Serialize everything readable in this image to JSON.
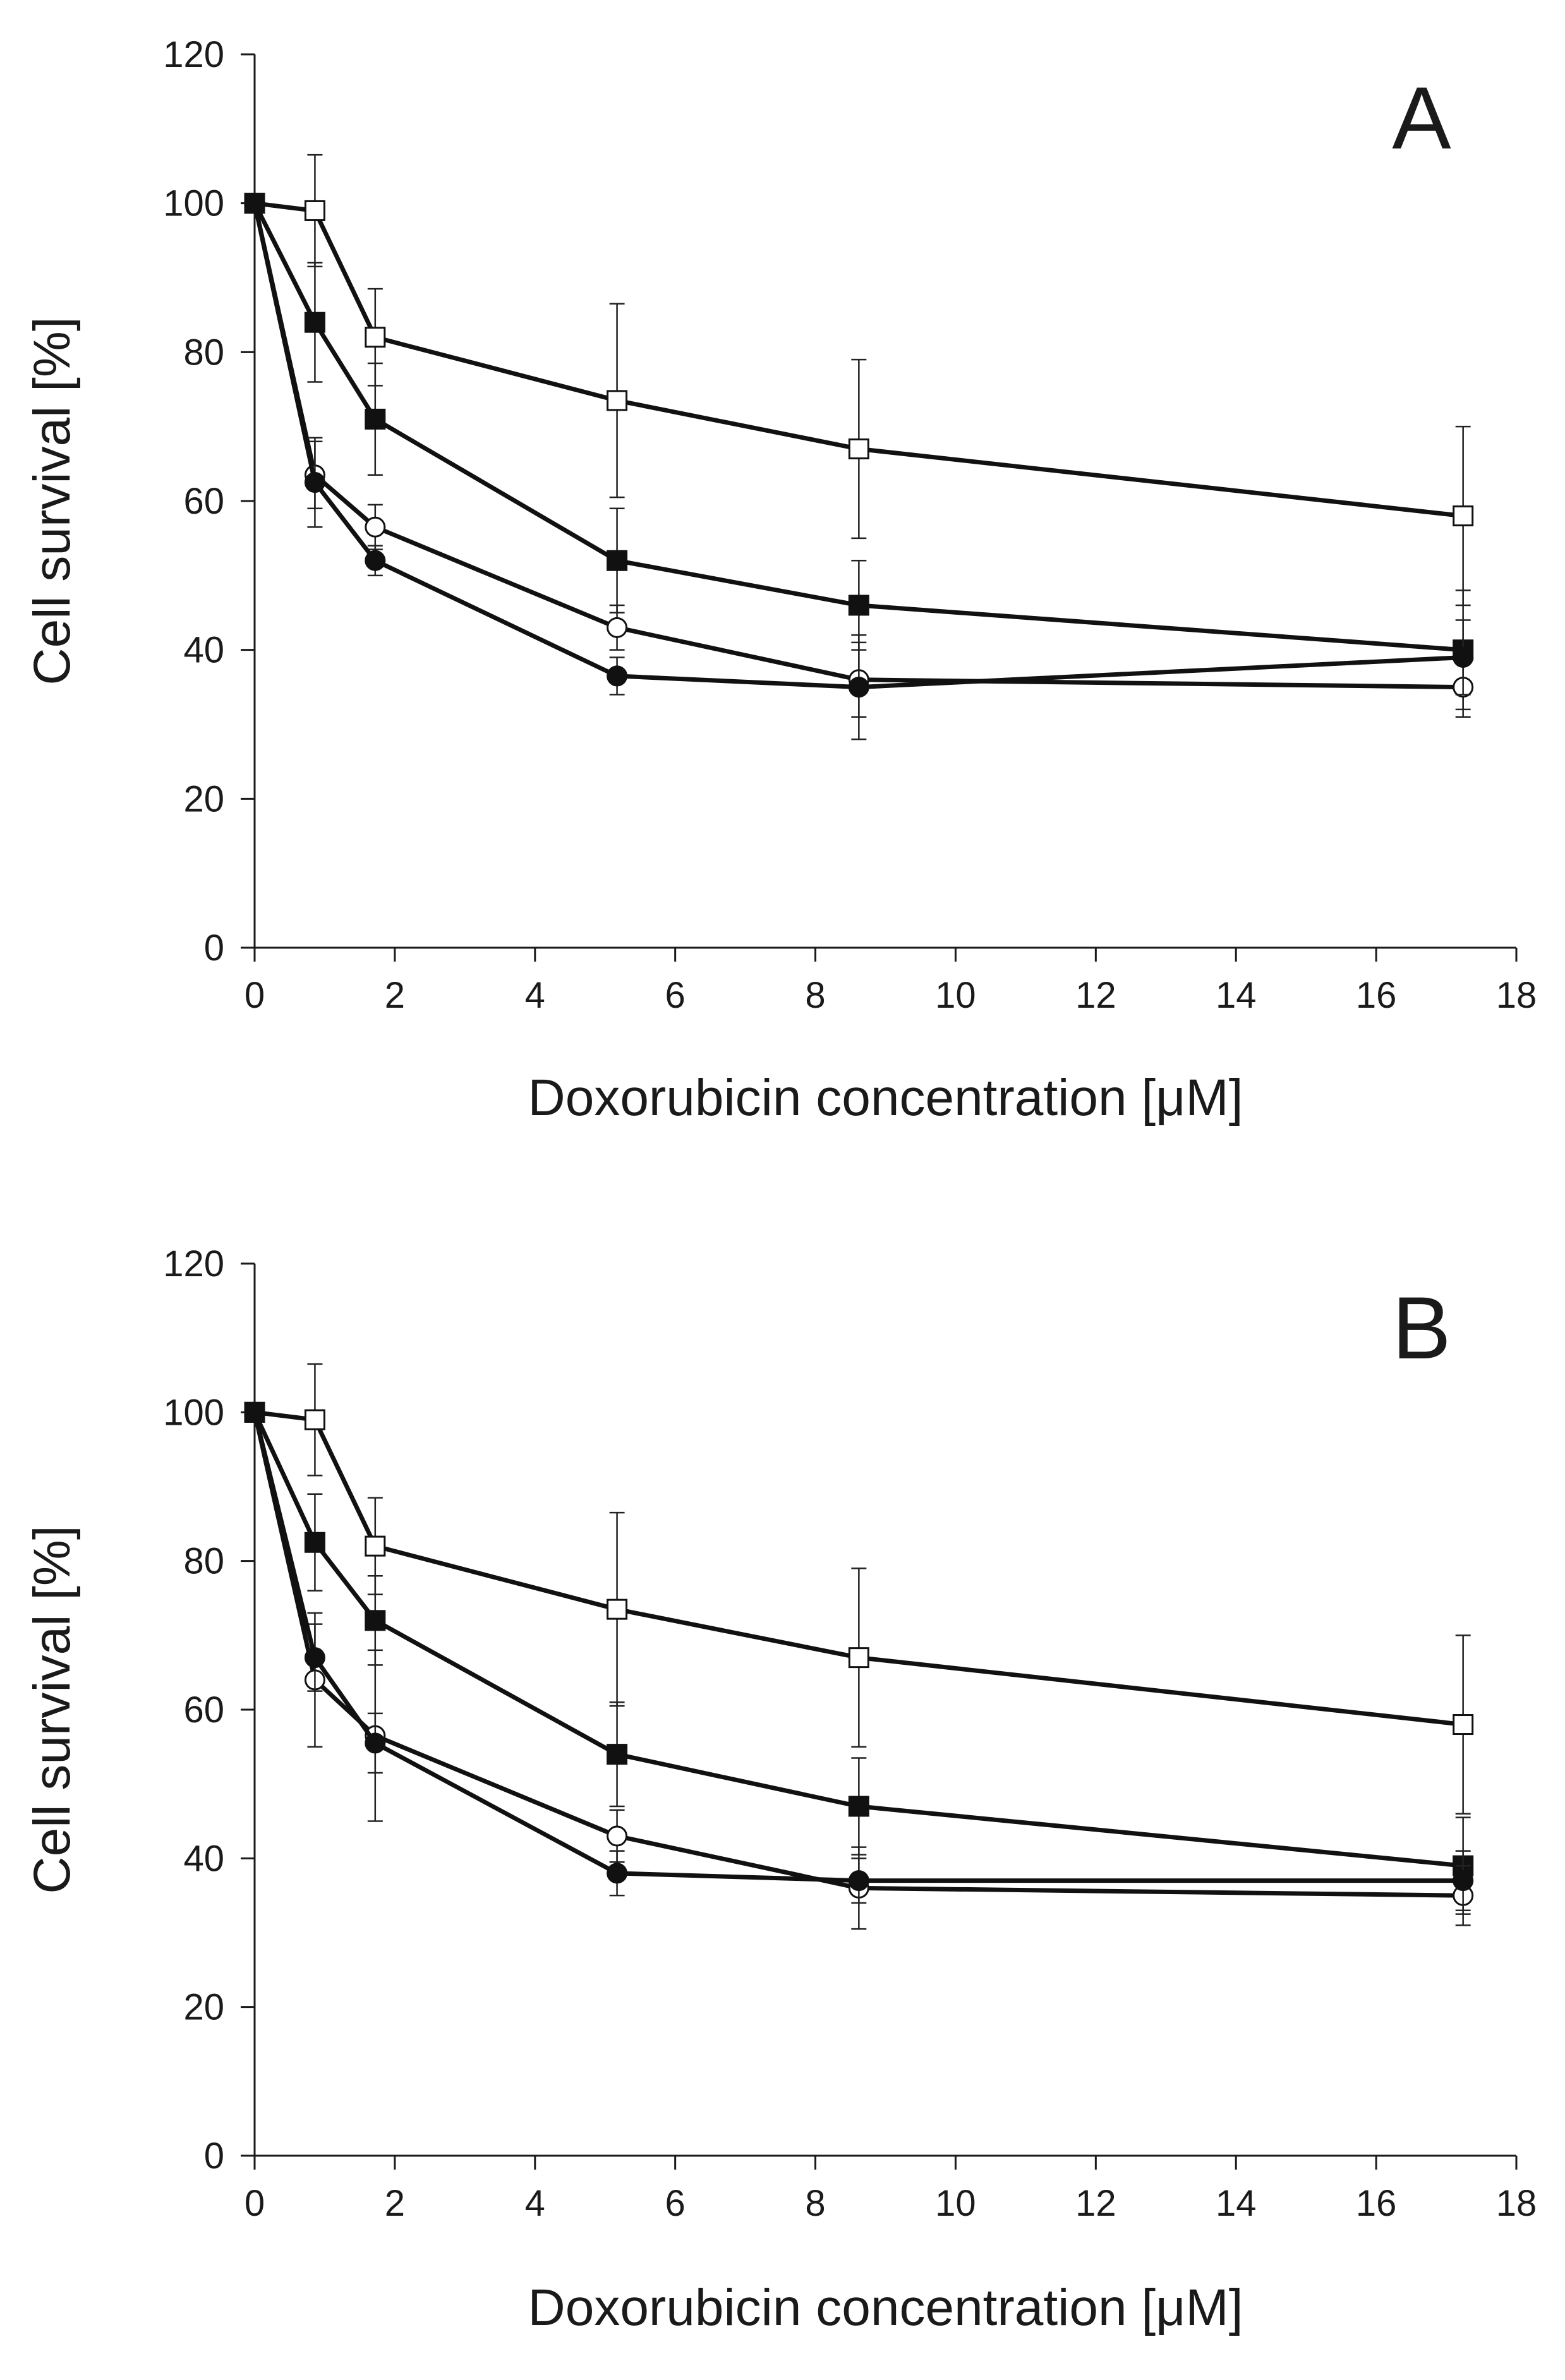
{
  "colors": {
    "ink": "#111111",
    "open_fill": "#ffffff",
    "filled": "#111111"
  },
  "chart_data": [
    {
      "type": "line",
      "panel_label": "A",
      "xlabel": "Doxorubicin concentration [μM]",
      "ylabel": "Cell survival [%]",
      "xlim": [
        0,
        18
      ],
      "ylim": [
        0,
        120
      ],
      "xticks": [
        0,
        2,
        4,
        6,
        8,
        10,
        12,
        14,
        16,
        18
      ],
      "yticks": [
        0,
        20,
        40,
        60,
        80,
        100,
        120
      ],
      "x": [
        0,
        0.86,
        1.72,
        5.17,
        8.62,
        17.24
      ],
      "series": [
        {
          "name": "open-square",
          "marker": "square",
          "filled": false,
          "values": [
            100,
            99,
            82,
            73.5,
            67,
            58
          ],
          "errors": [
            0,
            7.5,
            6.5,
            13,
            12,
            12
          ]
        },
        {
          "name": "filled-square",
          "marker": "square",
          "filled": true,
          "values": [
            100,
            84,
            71,
            52,
            46,
            40
          ],
          "errors": [
            0,
            8,
            7.5,
            7,
            6,
            8
          ]
        },
        {
          "name": "open-circle",
          "marker": "circle",
          "filled": false,
          "values": [
            100,
            63.5,
            56.5,
            43,
            36,
            35
          ],
          "errors": [
            0,
            4.5,
            3,
            3,
            5,
            4
          ]
        },
        {
          "name": "filled-circle",
          "marker": "circle",
          "filled": true,
          "values": [
            100,
            62.5,
            52,
            36.5,
            35,
            39
          ],
          "errors": [
            0,
            6,
            2,
            2.5,
            7,
            5
          ]
        }
      ]
    },
    {
      "type": "line",
      "panel_label": "B",
      "xlabel": "Doxorubicin concentration [μM]",
      "ylabel": "Cell survival [%]",
      "xlim": [
        0,
        18
      ],
      "ylim": [
        0,
        120
      ],
      "xticks": [
        0,
        2,
        4,
        6,
        8,
        10,
        12,
        14,
        16,
        18
      ],
      "yticks": [
        0,
        20,
        40,
        60,
        80,
        100,
        120
      ],
      "x": [
        0,
        0.86,
        1.72,
        5.17,
        8.62,
        17.24
      ],
      "series": [
        {
          "name": "open-square",
          "marker": "square",
          "filled": false,
          "values": [
            100,
            99,
            82,
            73.5,
            67,
            58
          ],
          "errors": [
            0,
            7.5,
            6.5,
            13,
            12,
            12
          ]
        },
        {
          "name": "filled-square",
          "marker": "square",
          "filled": true,
          "values": [
            100,
            82.5,
            72,
            54,
            47,
            39
          ],
          "errors": [
            0,
            6.5,
            6,
            7,
            6.5,
            6.5
          ]
        },
        {
          "name": "open-circle",
          "marker": "circle",
          "filled": false,
          "values": [
            100,
            64,
            56.5,
            43,
            36,
            35
          ],
          "errors": [
            0,
            9,
            11.5,
            3.5,
            5.5,
            4
          ]
        },
        {
          "name": "filled-circle",
          "marker": "circle",
          "filled": true,
          "values": [
            100,
            67,
            55.5,
            38,
            37,
            37
          ],
          "errors": [
            0,
            4.5,
            4,
            3,
            3,
            4
          ]
        }
      ]
    }
  ]
}
